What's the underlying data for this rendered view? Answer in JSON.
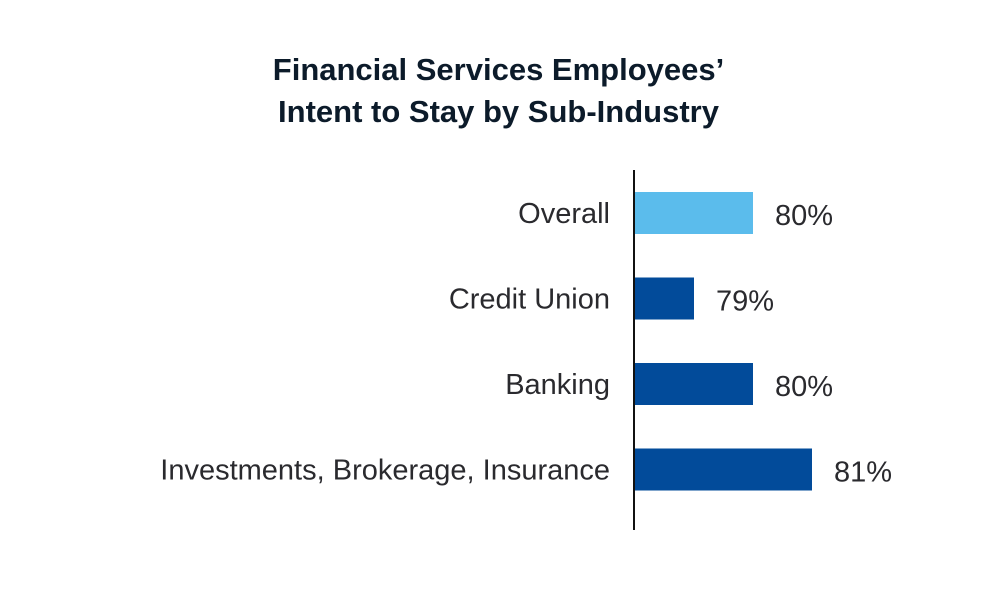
{
  "chart_data": {
    "type": "bar",
    "orientation": "horizontal",
    "title_lines": [
      "Financial Services Employees’",
      "Intent to Stay by Sub-Industry"
    ],
    "categories": [
      "Overall",
      "Credit Union",
      "Banking",
      "Investments, Brokerage, Insurance"
    ],
    "values": [
      80,
      79,
      80,
      81
    ],
    "value_labels": [
      "80%",
      "79%",
      "80%",
      "81%"
    ],
    "unit": "%",
    "xlim": [
      78,
      81
    ],
    "grid": false,
    "legend": "none",
    "colors": {
      "highlight": "#5bbcec",
      "bar": "#024b9a",
      "axis": "#111111",
      "label_text": "#2a2a2e",
      "title_text": "#0c1b2a"
    },
    "highlight_index": 0
  }
}
